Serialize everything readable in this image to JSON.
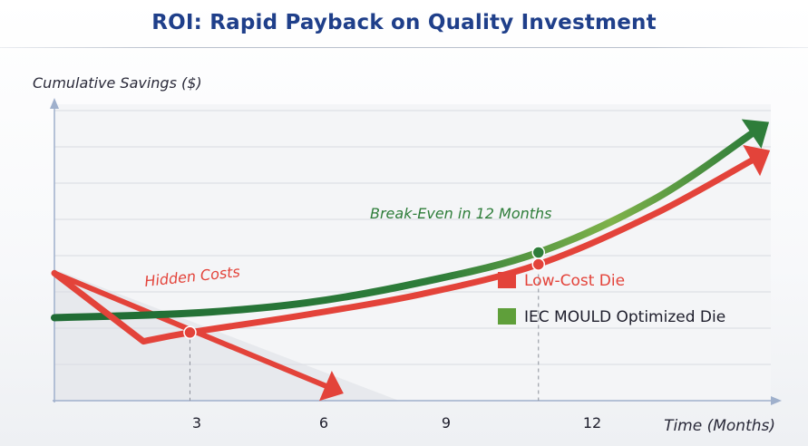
{
  "title": "ROI: Rapid Payback on Quality Investment",
  "chart_data": {
    "type": "line",
    "title": "ROI: Rapid Payback on Quality Investment",
    "xlabel": "Time (Months)",
    "ylabel": "Cumulative Savings ($)",
    "xlim": [
      -3.5,
      15
    ],
    "ylim": [
      0,
      10
    ],
    "x_ticks": [
      "3",
      "6",
      "9",
      "12"
    ],
    "x_tick_values": [
      3,
      6,
      9,
      12
    ],
    "grid": "horizontal",
    "legend_placement": "right",
    "series": [
      {
        "name": "Low-Cost Die",
        "color": "#e3433a",
        "points": [
          [
            -3.5,
            4.3
          ],
          [
            -1.2,
            2.0
          ],
          [
            0,
            2.3
          ],
          [
            3,
            2.9
          ],
          [
            6,
            3.6
          ],
          [
            9,
            4.6
          ],
          [
            12,
            6.3
          ],
          [
            14.5,
            8.1
          ]
        ]
      },
      {
        "name": "IEC MOULD Optimized Die",
        "color": "#2e7d3a",
        "points": [
          [
            -3.5,
            2.8
          ],
          [
            0,
            2.95
          ],
          [
            3,
            3.3
          ],
          [
            6,
            4.0
          ],
          [
            9,
            5.0
          ],
          [
            12,
            6.8
          ],
          [
            14.5,
            9.0
          ]
        ]
      }
    ],
    "hidden_costs_line": {
      "color": "#e3433a",
      "points": [
        [
          -3.5,
          4.3
        ],
        [
          3.5,
          0.5
        ]
      ]
    },
    "markers": [
      {
        "series": "Low-Cost Die",
        "x": 0,
        "y": 2.3
      },
      {
        "series": "Low-Cost Die",
        "x": 9,
        "y": 4.6
      },
      {
        "series": "IEC MOULD Optimized Die",
        "x": 9,
        "y": 5.0
      }
    ],
    "annotations": {
      "hidden_costs": "Hidden Costs",
      "break_even": "Break-Even in 12 Months"
    }
  }
}
